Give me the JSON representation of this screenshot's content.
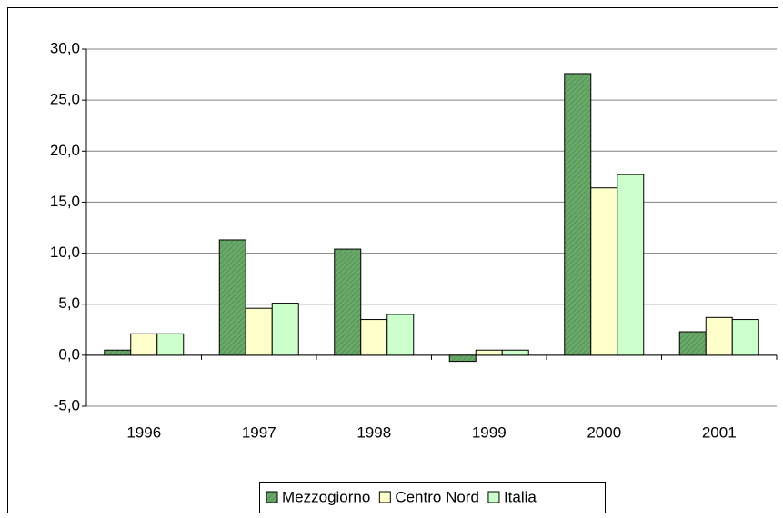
{
  "chart_data": {
    "type": "bar",
    "categories": [
      "1996",
      "1997",
      "1998",
      "1999",
      "2000",
      "2001"
    ],
    "series": [
      {
        "name": "Mezzogiorno",
        "color": "#6aa96a",
        "values": [
          0.5,
          11.3,
          10.4,
          -0.6,
          27.6,
          2.3
        ]
      },
      {
        "name": "Centro Nord",
        "color": "#ffffcc",
        "values": [
          2.1,
          4.6,
          3.5,
          0.5,
          16.4,
          3.7
        ]
      },
      {
        "name": "Italia",
        "color": "#ccffcc",
        "values": [
          2.1,
          5.1,
          4.0,
          0.5,
          17.7,
          3.5
        ]
      }
    ],
    "ylim": [
      -5,
      30
    ],
    "yticks": [
      {
        "value": -5,
        "label": "-5,0"
      },
      {
        "value": 0,
        "label": "0,0"
      },
      {
        "value": 5,
        "label": "5,0"
      },
      {
        "value": 10,
        "label": "10,0"
      },
      {
        "value": 15,
        "label": "15,0"
      },
      {
        "value": 20,
        "label": "20,0"
      },
      {
        "value": 25,
        "label": "25,0"
      },
      {
        "value": 30,
        "label": "30,0"
      }
    ],
    "grid": true,
    "legend": "bottom"
  }
}
